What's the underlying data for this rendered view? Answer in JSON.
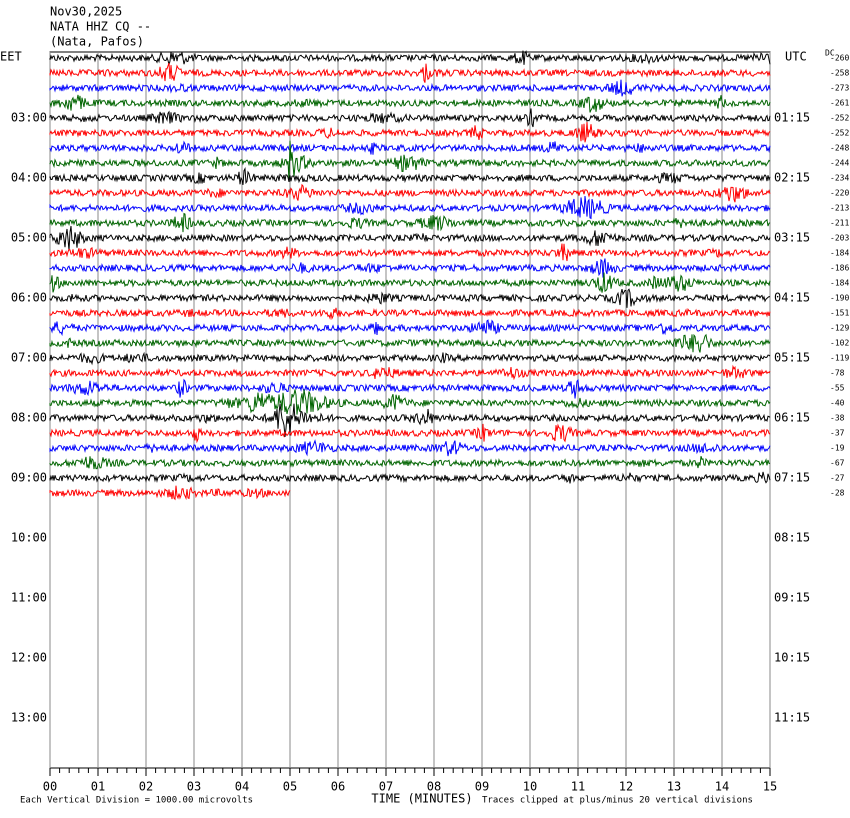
{
  "chart_data": {
    "type": "helicorder",
    "title": [
      "Nov30,2025",
      "NATA HHZ CQ --",
      "(Nata, Pafos)"
    ],
    "left_label": "EET",
    "right_label": "UTC",
    "dc_label": "DC",
    "left_times": [
      "03:00",
      "04:00",
      "05:00",
      "06:00",
      "07:00",
      "08:00",
      "09:00",
      "10:00",
      "11:00",
      "12:00",
      "13:00"
    ],
    "right_times": [
      "01:15",
      "02:15",
      "03:15",
      "04:15",
      "05:15",
      "06:15",
      "07:15",
      "08:15",
      "09:15",
      "10:15",
      "11:15"
    ],
    "dc_offsets": [
      -260,
      -258,
      -273,
      -261,
      -252,
      -252,
      -248,
      -244,
      -234,
      -220,
      -213,
      -211,
      -203,
      -184,
      -186,
      -184,
      -190,
      -151,
      -129,
      -102,
      -119,
      -78,
      -55,
      -40,
      -38,
      -37,
      -19,
      -67,
      -27,
      -28
    ],
    "colors": [
      "#000000",
      "#ff0000",
      "#0000ff",
      "#006400"
    ],
    "last_trace_end": 5,
    "xlabel": "TIME (MINUTES)",
    "xlim": [
      0,
      15
    ],
    "xticks": [
      {
        "value": 0,
        "label": "00"
      },
      {
        "value": 1,
        "label": "01"
      },
      {
        "value": 2,
        "label": "02"
      },
      {
        "value": 3,
        "label": "03"
      },
      {
        "value": 4,
        "label": "04"
      },
      {
        "value": 5,
        "label": "05"
      },
      {
        "value": 6,
        "label": "06"
      },
      {
        "value": 7,
        "label": "07"
      },
      {
        "value": 8,
        "label": "08"
      },
      {
        "value": 9,
        "label": "09"
      },
      10,
      11,
      12,
      13,
      14,
      15
    ],
    "scale_note": "Each Vertical Division = 1000.00 microvolts",
    "clip_note": "Traces clipped at plus/minus 20 vertical divisions"
  }
}
